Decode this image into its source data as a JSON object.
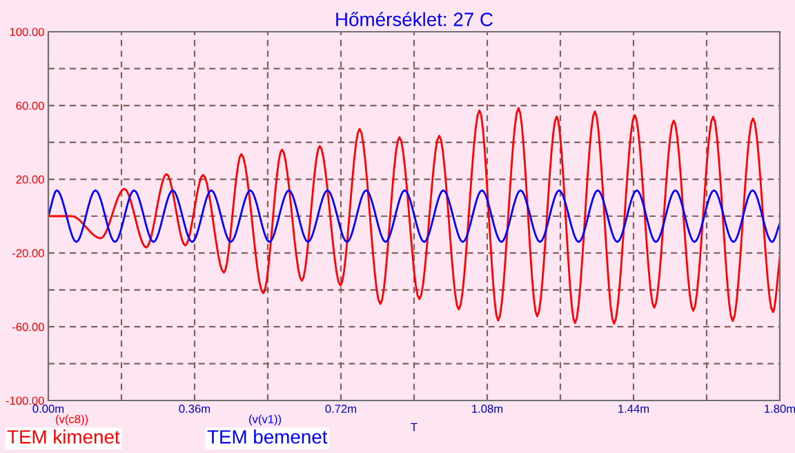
{
  "chart_data": {
    "type": "line",
    "title": "Hőmérséklet: 27 C",
    "xlabel": "T",
    "series": [
      {
        "name": "(v(c8))",
        "color": "#ff0000",
        "x": [
          0,
          0.057,
          0.129,
          0.187,
          0.241,
          0.291,
          0.337,
          0.381,
          0.432,
          0.475,
          0.529,
          0.575,
          0.624,
          0.668,
          0.719,
          0.766,
          0.817,
          0.864,
          0.913,
          0.962,
          1.01,
          1.061,
          1.107,
          1.157,
          1.203,
          1.251,
          1.296,
          1.345,
          1.392,
          1.443,
          1.491,
          1.539,
          1.587,
          1.636,
          1.684,
          1.734,
          1.783,
          1.8
        ],
        "values": [
          0,
          0,
          -12,
          14.8,
          -17,
          22.8,
          -15.9,
          22.3,
          -30.6,
          33.6,
          -41.8,
          36.1,
          -35,
          38,
          -37.6,
          47.3,
          -47.6,
          42.8,
          -45,
          43.6,
          -50.6,
          57.3,
          -56.6,
          58.6,
          -54.3,
          54,
          -58,
          56.8,
          -58.3,
          54.8,
          -49.6,
          51.8,
          -51.3,
          54,
          -56.8,
          53,
          -52,
          -22.6
        ]
      },
      {
        "name": "(v(v1))",
        "color": "#0000ff",
        "x": [
          0,
          0.021,
          0.069,
          0.116,
          0.164,
          0.211,
          0.259,
          0.306,
          0.354,
          0.401,
          0.449,
          0.497,
          0.544,
          0.592,
          0.639,
          0.687,
          0.735,
          0.782,
          0.83,
          0.877,
          0.925,
          0.972,
          1.02,
          1.067,
          1.115,
          1.162,
          1.21,
          1.257,
          1.305,
          1.352,
          1.4,
          1.448,
          1.495,
          1.543,
          1.59,
          1.638,
          1.686,
          1.733,
          1.781,
          1.8
        ],
        "values": [
          0,
          14,
          -14,
          14,
          -14,
          14,
          -14,
          14,
          -14,
          14,
          -14,
          14,
          -14,
          14,
          -14,
          14,
          -14,
          14,
          -14,
          14,
          -14,
          14,
          -14,
          14,
          -14,
          14,
          -14,
          14,
          -14,
          14,
          -14,
          14,
          -14,
          14,
          -14,
          14,
          -14,
          14,
          -14,
          -4
        ]
      }
    ],
    "annotations": [
      "TEM kimenet",
      "TEM bemenet"
    ],
    "xlim": [
      0,
      1.8
    ],
    "ylim": [
      -100,
      100
    ],
    "xticks": [
      {
        "value": 0,
        "label": "0.00m"
      },
      {
        "value": 0.18,
        "label": null
      },
      {
        "value": 0.36,
        "label": "0.36m"
      },
      {
        "value": 0.54,
        "label": null
      },
      {
        "value": 0.72,
        "label": "0.72m"
      },
      {
        "value": 0.9,
        "label": null
      },
      {
        "value": 1.08,
        "label": "1.08m"
      },
      {
        "value": 1.26,
        "label": null
      },
      {
        "value": 1.44,
        "label": "1.44m"
      },
      {
        "value": 1.62,
        "label": null
      },
      {
        "value": 1.8,
        "label": "1.80m"
      }
    ],
    "yticks": [
      {
        "value": -100,
        "label": "-100.00"
      },
      {
        "value": -80,
        "label": null
      },
      {
        "value": -60,
        "label": "-60.00"
      },
      {
        "value": -40,
        "label": null
      },
      {
        "value": -20,
        "label": "-20.00"
      },
      {
        "value": 0,
        "label": null
      },
      {
        "value": 20,
        "label": "20.00"
      },
      {
        "value": 40,
        "label": null
      },
      {
        "value": 60,
        "label": "60.00"
      },
      {
        "value": 80,
        "label": null
      },
      {
        "value": 100,
        "label": "100.00"
      }
    ],
    "grid": true,
    "legend": "bottom left",
    "marker": "none",
    "line_style": "solid"
  }
}
